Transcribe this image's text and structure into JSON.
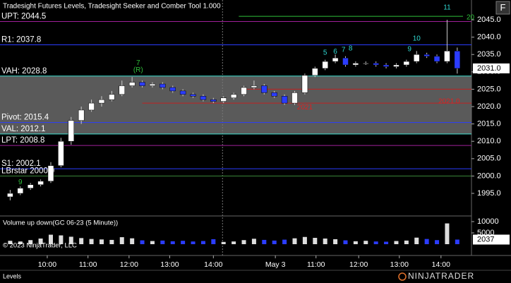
{
  "chart_data": [
    {
      "type": "candlestick",
      "title": "Tradesight Futures Levels, Tradesight Seeker and Comber Tool 1.000",
      "x": [
        0,
        1,
        2,
        3,
        4,
        5,
        6,
        7,
        8,
        9,
        10,
        11,
        12,
        13,
        14,
        15,
        16,
        17,
        18,
        19,
        20,
        21,
        22,
        23,
        24,
        25,
        26,
        27,
        28,
        29,
        30,
        31,
        32,
        33,
        34,
        35,
        36,
        37,
        38,
        39,
        40,
        41,
        42,
        43,
        44
      ],
      "open": [
        1994.0,
        1995.0,
        1996.5,
        1997.5,
        1998.5,
        2003.0,
        2010.0,
        2016.0,
        2019.0,
        2021.0,
        2022.0,
        2023.5,
        2026.0,
        2027.0,
        2026.0,
        2026.5,
        2025.5,
        2024.5,
        2023.5,
        2023.0,
        2022.0,
        2021.5,
        2022.5,
        2023.5,
        2025.5,
        2026.0,
        2024.0,
        2023.0,
        2021.0,
        2024.0,
        2029.0,
        2031.0,
        2033.0,
        2034.0,
        2032.0,
        2032.5,
        2032.5,
        2032.0,
        2031.5,
        2032.0,
        2033.0,
        2035.0,
        2034.5,
        2033.0,
        2036.0
      ],
      "high": [
        1996.0,
        1997.0,
        1998.0,
        1999.0,
        2004.0,
        2011.0,
        2017.0,
        2020.0,
        2022.0,
        2023.0,
        2024.5,
        2027.5,
        2028.5,
        2027.5,
        2027.0,
        2027.0,
        2026.0,
        2025.0,
        2024.0,
        2023.5,
        2022.5,
        2023.0,
        2024.0,
        2026.0,
        2027.5,
        2026.5,
        2024.5,
        2023.5,
        2024.5,
        2029.5,
        2031.5,
        2033.5,
        2035.0,
        2034.5,
        2033.0,
        2033.0,
        2033.0,
        2032.5,
        2032.5,
        2033.5,
        2036.0,
        2035.5,
        2035.0,
        2045.0,
        2037.0
      ],
      "low": [
        1993.0,
        1994.5,
        1996.0,
        1997.0,
        1998.0,
        2002.5,
        2009.0,
        2015.0,
        2018.5,
        2020.0,
        2021.5,
        2023.0,
        2025.5,
        2025.5,
        2025.5,
        2025.0,
        2024.0,
        2023.0,
        2022.5,
        2021.5,
        2021.0,
        2021.0,
        2022.0,
        2023.0,
        2025.0,
        2023.5,
        2022.5,
        2020.5,
        2020.5,
        2023.5,
        2028.5,
        2030.5,
        2032.5,
        2031.5,
        2031.5,
        2032.0,
        2031.5,
        2031.0,
        2031.0,
        2031.5,
        2032.5,
        2034.0,
        2032.5,
        2032.5,
        2029.5
      ],
      "close": [
        1995.0,
        1996.5,
        1997.5,
        1998.5,
        2003.0,
        2010.0,
        2016.0,
        2019.0,
        2021.0,
        2022.0,
        2023.5,
        2026.0,
        2027.0,
        2026.0,
        2026.5,
        2025.5,
        2024.5,
        2023.5,
        2023.0,
        2022.0,
        2021.5,
        2022.5,
        2023.5,
        2025.5,
        2026.0,
        2024.0,
        2023.0,
        2021.0,
        2024.0,
        2029.0,
        2031.0,
        2033.0,
        2034.0,
        2032.0,
        2032.5,
        2032.5,
        2032.0,
        2031.5,
        2032.0,
        2033.0,
        2035.0,
        2034.5,
        2033.0,
        2036.0,
        2031.0
      ],
      "up_color": "#ffffff",
      "down_color": "#2b3cff",
      "xlim": [
        -1,
        45.4
      ],
      "xticks": [
        {
          "value": 3.65,
          "label": "10:00"
        },
        {
          "value": 7.66,
          "label": "11:00"
        },
        {
          "value": 11.7,
          "label": "12:00"
        },
        {
          "value": 15.7,
          "label": "13:00"
        },
        {
          "value": 20,
          "label": "14:00"
        },
        {
          "value": 26.1,
          "label": "May 3"
        },
        {
          "value": 30.1,
          "label": "11:00"
        },
        {
          "value": 34.3,
          "label": "12:00"
        },
        {
          "value": 38.3,
          "label": "13:00"
        },
        {
          "value": 42.4,
          "label": "14:00"
        }
      ],
      "session_break": 20.9,
      "ylim": [
        1988.7,
        2050.7
      ],
      "yticks": [
        {
          "value": 2045,
          "label": "2045.0"
        },
        {
          "value": 2040,
          "label": "2040.0"
        },
        {
          "value": 2035,
          "label": "2035.0"
        },
        {
          "value": 2030,
          "label": "2030.0"
        },
        {
          "value": 2025,
          "label": "2025.0"
        },
        {
          "value": 2020,
          "label": "2020.0"
        },
        {
          "value": 2015,
          "label": "2015.0"
        },
        {
          "value": 2010,
          "label": "2010.0"
        },
        {
          "value": 2005,
          "label": "2005.0"
        },
        {
          "value": 2000,
          "label": "2000.0"
        },
        {
          "value": 1995,
          "label": "1995.0"
        }
      ],
      "levels": [
        {
          "label": "UPT: 2044.5",
          "value": 2044.5,
          "color": "#a0209a"
        },
        {
          "label": "R1: 2037.8",
          "value": 2037.8,
          "color": "#2b3cff"
        },
        {
          "label": "VAH: 2028.8",
          "value": 2028.8,
          "color": "#3fe0d0"
        },
        {
          "label": "Pivot: 2015.4",
          "value": 2015.4,
          "color": "#2b3cff"
        },
        {
          "label": "VAL: 2012.1",
          "value": 2012.1,
          "color": "#3fe0d0"
        },
        {
          "label": "LPT: 2008.8",
          "value": 2008.8,
          "color": "#a0209a"
        },
        {
          "label": "S1: 2002.1",
          "value": 2002.1,
          "color": "#2b3cff"
        },
        {
          "label": "LBrstar 2000.0",
          "value": 2000.0,
          "color": "#3a8a3a"
        }
      ],
      "value_area_color": "#6a6a6a",
      "annotations": [
        {
          "text": "11",
          "x": 43,
          "y": 2048.5,
          "color": "#2fd6d0"
        },
        {
          "text": "10",
          "x": 40,
          "y": 2039.5,
          "color": "#2fd6d0"
        },
        {
          "text": "9",
          "x": 39.3,
          "y": 2036.5,
          "color": "#2fd6d0"
        },
        {
          "text": "5",
          "x": 31,
          "y": 2035.5,
          "color": "#2fd6d0"
        },
        {
          "text": "6",
          "x": 32,
          "y": 2035.8,
          "color": "#2fd6d0"
        },
        {
          "text": "7",
          "x": 32.8,
          "y": 2036.3,
          "color": "#2fd6d0"
        },
        {
          "text": "8",
          "x": 33.5,
          "y": 2036.7,
          "color": "#2fd6d0"
        },
        {
          "text": "7",
          "x": 12.6,
          "y": 2032.5,
          "color": "#2fbf3a"
        },
        {
          "text": "(R)",
          "x": 12.6,
          "y": 2030.5,
          "color": "#2fbf3a"
        },
        {
          "text": "9",
          "x": 1,
          "y": 1998.2,
          "color": "#2fbf3a"
        },
        {
          "text": "2021.0",
          "x": 43.2,
          "y": 2021.5,
          "color": "#e02020"
        },
        {
          "text": "2021",
          "x": 29,
          "y": 2019.7,
          "color": "#e02020"
        },
        {
          "text": "20",
          "x": 45.3,
          "y": 2045.6,
          "color": "#2fbf3a"
        }
      ],
      "target_line": {
        "value": 2046.0,
        "color": "#2fbf3a",
        "from": 22.5
      },
      "stop_lines": [
        {
          "value": 2025.0,
          "color": "#c02020",
          "from": 22.7
        },
        {
          "value": 2021.0,
          "color": "#c02020",
          "from": 13
        }
      ],
      "current_price": {
        "value": 2031,
        "label": "2031.0"
      }
    },
    {
      "type": "bar",
      "title": "Volume up down(GC 06-23 (5 Minute))",
      "values": [
        1500,
        1200,
        1800,
        2500,
        4200,
        3900,
        3300,
        2700,
        2300,
        2100,
        1900,
        3100,
        2600,
        1700,
        1400,
        1600,
        1300,
        1500,
        1200,
        1400,
        2200,
        1000,
        1200,
        1800,
        2400,
        1900,
        1600,
        2000,
        2600,
        3200,
        2800,
        2500,
        2200,
        1700,
        1300,
        1500,
        1200,
        1100,
        1400,
        1600,
        2900,
        2300,
        1800,
        9200,
        2037
      ],
      "value_labels": [
        null,
        null,
        null,
        null,
        null,
        null,
        null,
        null,
        null,
        null,
        null,
        null,
        null,
        null,
        null,
        null,
        null,
        null,
        null,
        null,
        null,
        null,
        null,
        null,
        null,
        null,
        null,
        null,
        null,
        null,
        null,
        null,
        null,
        null,
        null,
        null,
        null,
        null,
        null,
        null,
        null,
        null,
        null,
        null,
        "2037"
      ],
      "ylim": [
        0,
        11000
      ],
      "yticks": [
        5000,
        10000
      ],
      "copyright": "© 2023 NinjaTrader, LLC"
    }
  ],
  "tab": "Levels",
  "logo": "NINJATRADER",
  "button": "F"
}
